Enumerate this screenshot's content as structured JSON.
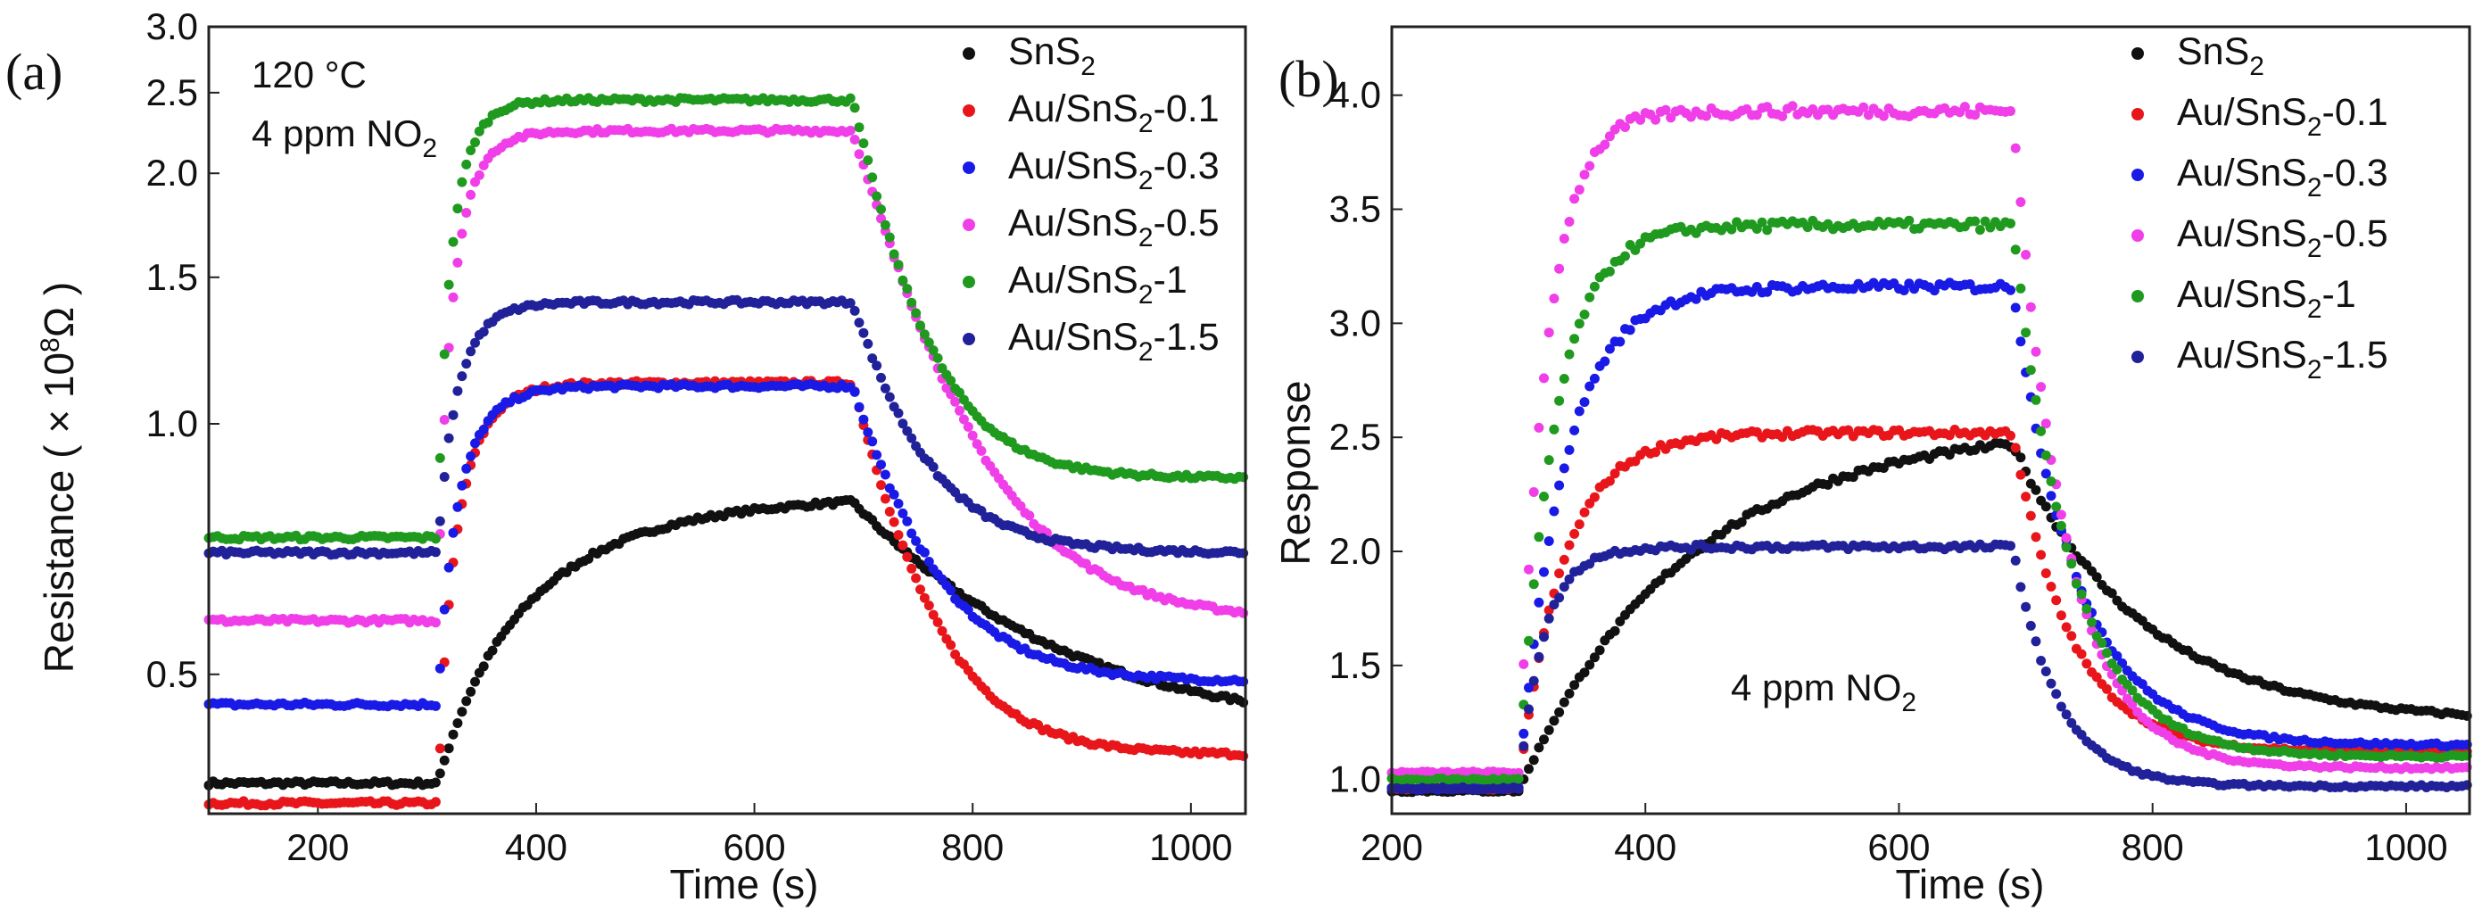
{
  "colors": {
    "SnS2": "#111111",
    "Au/SnS2-0.1": "#e8161b",
    "Au/SnS2-0.3": "#1a1ae6",
    "Au/SnS2-0.5": "#f03ee8",
    "Au/SnS2-1": "#1f9a1f",
    "Au/SnS2-1.5": "#21219a"
  },
  "chart_data": [
    {
      "type": "scatter",
      "panel_label": "(a)",
      "xlabel": "Time (s)",
      "ylabel": "Resistance ( × 10",
      "ylabel_sup": "8",
      "ylabel_unit": "Ω )",
      "annotations": [
        "120 °C",
        "4 ppm NO",
        "2"
      ],
      "xlim": [
        100,
        1050
      ],
      "ylim": [
        0.34,
        3.0
      ],
      "yscale": "log",
      "xticks": [
        200,
        400,
        600,
        800,
        1000
      ],
      "yticks": [
        0.5,
        1.0,
        1.5,
        2.0,
        2.5,
        3.0
      ],
      "ytick_labels": [
        "0.5",
        "1.0",
        "1.5",
        "2.0",
        "2.5",
        "3.0"
      ],
      "legend_position": "top-right",
      "series": [
        {
          "name": "SnS2",
          "legend_main": "SnS",
          "legend_sub": "2",
          "legend_tail": "",
          "color_key": "SnS2",
          "start": 0.37,
          "plateau": 0.82,
          "end": 0.43,
          "t_on": 310,
          "t_off": 690,
          "tau_rise": 110,
          "tau_fall": 150
        },
        {
          "name": "Au/SnS2-0.1",
          "legend_main": "Au/SnS",
          "legend_sub": "2",
          "legend_tail": "-0.1",
          "color_key": "Au/SnS2-0.1",
          "start": 0.35,
          "plateau": 1.12,
          "end": 0.4,
          "t_on": 310,
          "t_off": 690,
          "tau_rise": 25,
          "tau_fall": 55
        },
        {
          "name": "Au/SnS2-0.3",
          "legend_main": "Au/SnS",
          "legend_sub": "2",
          "legend_tail": "-0.3",
          "color_key": "Au/SnS2-0.3",
          "start": 0.46,
          "plateau": 1.11,
          "end": 0.49,
          "t_on": 310,
          "t_off": 690,
          "tau_rise": 25,
          "tau_fall": 60
        },
        {
          "name": "Au/SnS2-0.5",
          "legend_main": "Au/SnS",
          "legend_sub": "2",
          "legend_tail": "-0.5",
          "color_key": "Au/SnS2-0.5",
          "start": 0.58,
          "plateau": 2.25,
          "end": 0.58,
          "t_on": 310,
          "t_off": 690,
          "tau_rise": 20,
          "tau_fall": 75
        },
        {
          "name": "Au/SnS2-1",
          "legend_main": "Au/SnS",
          "legend_sub": "2",
          "legend_tail": "-1",
          "color_key": "Au/SnS2-1",
          "start": 0.73,
          "plateau": 2.45,
          "end": 0.86,
          "t_on": 310,
          "t_off": 690,
          "tau_rise": 18,
          "tau_fall": 50
        },
        {
          "name": "Au/SnS2-1.5",
          "legend_main": "Au/SnS",
          "legend_sub": "2",
          "legend_tail": "-1.5",
          "color_key": "Au/SnS2-1.5",
          "start": 0.7,
          "plateau": 1.4,
          "end": 0.7,
          "t_on": 310,
          "t_off": 690,
          "tau_rise": 22,
          "tau_fall": 55
        }
      ]
    },
    {
      "type": "scatter",
      "panel_label": "(b)",
      "xlabel": "Time (s)",
      "ylabel": "Response",
      "annotations": [
        "4 ppm NO",
        "2"
      ],
      "xlim": [
        200,
        1050
      ],
      "ylim": [
        0.85,
        4.3
      ],
      "yscale": "linear",
      "xticks": [
        200,
        400,
        600,
        800,
        1000
      ],
      "yticks": [
        1.0,
        1.5,
        2.0,
        2.5,
        3.0,
        3.5,
        4.0
      ],
      "ytick_labels": [
        "1.0",
        "1.5",
        "2.0",
        "2.5",
        "3.0",
        "3.5",
        "4.0"
      ],
      "legend_position": "top-right",
      "series": [
        {
          "name": "SnS2",
          "legend_main": "SnS",
          "legend_sub": "2",
          "legend_tail": "",
          "color_key": "SnS2",
          "start": 0.95,
          "plateau": 2.55,
          "end": 1.25,
          "t_on": 300,
          "t_off": 690,
          "tau_rise": 130,
          "tau_fall": 100
        },
        {
          "name": "Au/SnS2-0.1",
          "legend_main": "Au/SnS",
          "legend_sub": "2",
          "legend_tail": "-0.1",
          "color_key": "Au/SnS2-0.1",
          "start": 0.96,
          "plateau": 2.52,
          "end": 1.12,
          "t_on": 300,
          "t_off": 690,
          "tau_rise": 35,
          "tau_fall": 45
        },
        {
          "name": "Au/SnS2-0.3",
          "legend_main": "Au/SnS",
          "legend_sub": "2",
          "legend_tail": "-0.3",
          "color_key": "Au/SnS2-0.3",
          "start": 0.96,
          "plateau": 3.16,
          "end": 1.15,
          "t_on": 300,
          "t_off": 690,
          "tau_rise": 35,
          "tau_fall": 50
        },
        {
          "name": "Au/SnS2-0.5",
          "legend_main": "Au/SnS",
          "legend_sub": "2",
          "legend_tail": "-0.5",
          "color_key": "Au/SnS2-0.5",
          "start": 1.03,
          "plateau": 3.93,
          "end": 1.05,
          "t_on": 300,
          "t_off": 690,
          "tau_rise": 22,
          "tau_fall": 40
        },
        {
          "name": "Au/SnS2-1",
          "legend_main": "Au/SnS",
          "legend_sub": "2",
          "legend_tail": "-1",
          "color_key": "Au/SnS2-1",
          "start": 1.0,
          "plateau": 3.43,
          "end": 1.1,
          "t_on": 300,
          "t_off": 690,
          "tau_rise": 28,
          "tau_fall": 45
        },
        {
          "name": "Au/SnS2-1.5",
          "legend_main": "Au/SnS",
          "legend_sub": "2",
          "legend_tail": "-1.5",
          "color_key": "Au/SnS2-1.5",
          "start": 0.96,
          "plateau": 2.02,
          "end": 0.97,
          "t_on": 300,
          "t_off": 690,
          "tau_rise": 20,
          "tau_fall": 35
        }
      ]
    }
  ]
}
